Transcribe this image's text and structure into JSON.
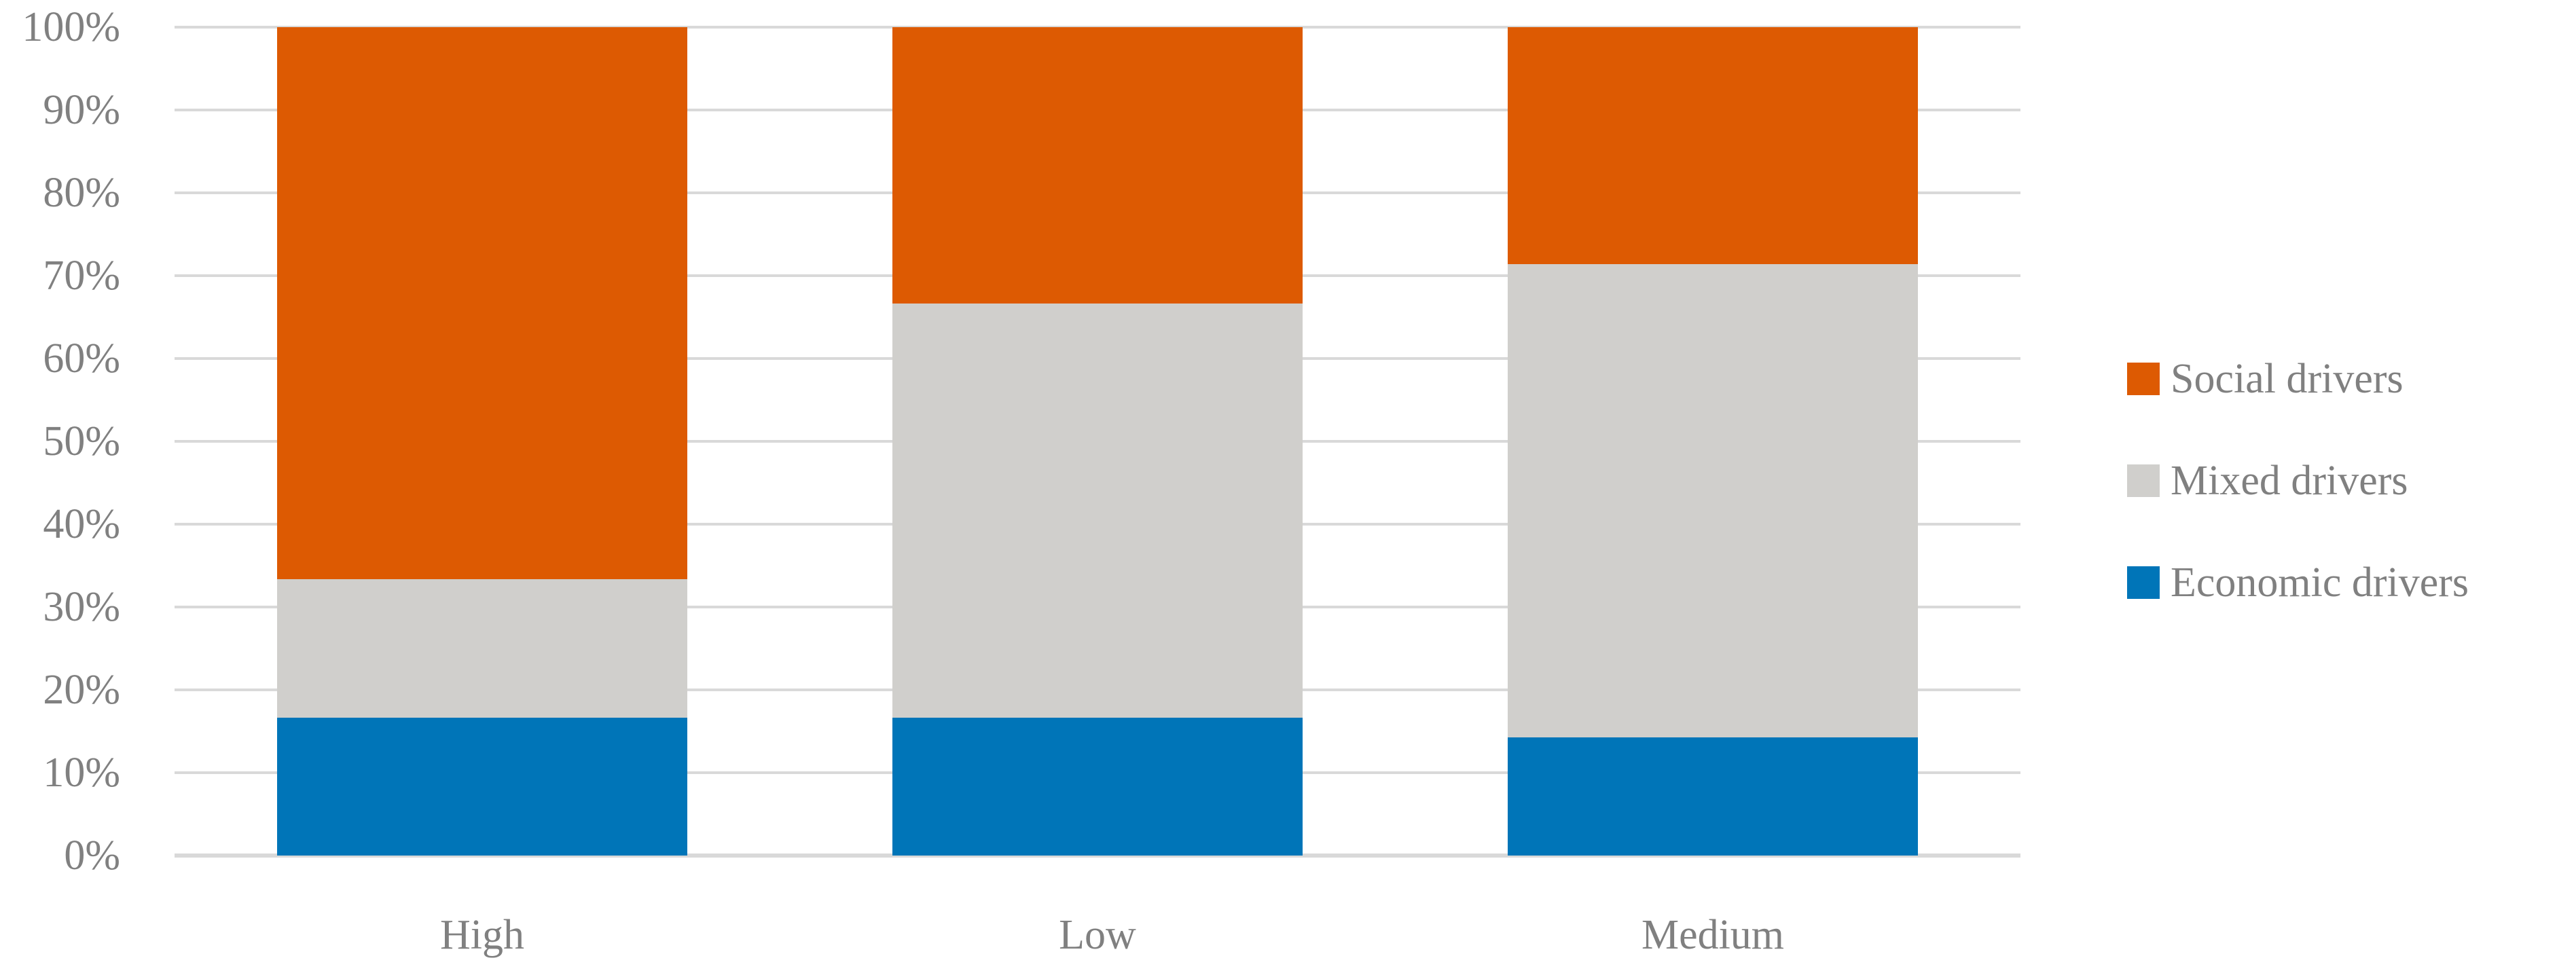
{
  "chart_data": {
    "type": "bar",
    "subtype": "stacked-100-percent-column",
    "title": "",
    "xlabel": "",
    "ylabel": "",
    "categories": [
      "High",
      "Low",
      "Medium"
    ],
    "series": [
      {
        "name": "Economic drivers",
        "color": "#0075B8",
        "values": [
          16.67,
          16.67,
          14.29
        ]
      },
      {
        "name": "Mixed drivers",
        "color": "#D0CFCC",
        "values": [
          16.67,
          50.0,
          57.14
        ]
      },
      {
        "name": "Social drivers",
        "color": "#DD5A02",
        "values": [
          66.66,
          33.33,
          28.57
        ]
      }
    ],
    "y_axis": {
      "min": 0,
      "max": 100,
      "tick_step": 10,
      "ticks": [
        "0%",
        "10%",
        "20%",
        "30%",
        "40%",
        "50%",
        "60%",
        "70%",
        "80%",
        "90%",
        "100%"
      ]
    },
    "legend": {
      "position": "right",
      "entries": [
        "Social drivers",
        "Mixed drivers",
        "Economic drivers"
      ]
    },
    "grid": true,
    "styles": {
      "gridline_color": "#D9D9D9",
      "axis_line_color": "#D9D9D9",
      "label_color": "#808080",
      "background": "#FFFFFF"
    }
  }
}
